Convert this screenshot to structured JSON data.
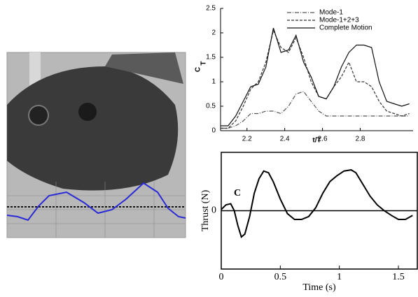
{
  "chart_data": [
    {
      "type": "line",
      "xlabel": "t/T",
      "ylabel": "C",
      "ylabel_subscript": "T",
      "x": [
        2.06,
        2.1,
        2.14,
        2.18,
        2.22,
        2.26,
        2.3,
        2.34,
        2.38,
        2.42,
        2.46,
        2.5,
        2.54,
        2.58,
        2.62,
        2.66,
        2.7,
        2.74,
        2.78,
        2.82,
        2.86,
        2.9,
        2.94,
        2.98,
        3.02,
        3.06
      ],
      "series": [
        {
          "name": "Mode-1",
          "color": "#555555",
          "dash": "dashdot",
          "values": [
            0.05,
            0.05,
            0.1,
            0.2,
            0.35,
            0.35,
            0.4,
            0.4,
            0.35,
            0.5,
            0.75,
            0.8,
            0.6,
            0.4,
            0.3,
            0.3,
            0.3,
            0.3,
            0.3,
            0.3,
            0.3,
            0.3,
            0.3,
            0.3,
            0.3,
            0.3
          ]
        },
        {
          "name": "Mode-1+2+3",
          "color": "#333333",
          "dash": "dashed",
          "values": [
            0.05,
            0.05,
            0.2,
            0.5,
            0.85,
            1.0,
            1.4,
            2.05,
            1.7,
            1.6,
            1.9,
            1.5,
            1.0,
            0.7,
            0.65,
            0.9,
            1.1,
            1.4,
            1.0,
            1.0,
            0.9,
            0.6,
            0.4,
            0.35,
            0.3,
            0.35
          ]
        },
        {
          "name": "Complete Motion",
          "color": "#111111",
          "dash": "solid",
          "values": [
            0.1,
            0.1,
            0.3,
            0.6,
            0.9,
            0.95,
            1.3,
            2.1,
            1.6,
            1.65,
            1.95,
            1.4,
            1.1,
            0.7,
            0.65,
            0.9,
            1.3,
            1.6,
            1.75,
            1.75,
            1.7,
            1.0,
            0.6,
            0.55,
            0.5,
            0.55
          ]
        }
      ],
      "xlim": [
        2.06,
        3.08
      ],
      "xticks": [
        2.2,
        2.4,
        2.6,
        2.8
      ],
      "ylim": [
        0,
        2.5
      ],
      "yticks": [
        0,
        0.5,
        1,
        1.5,
        2,
        2.5
      ],
      "legend": "upper right"
    },
    {
      "type": "line",
      "xlabel": "Time (s)",
      "ylabel": "Thrust (N)",
      "annotation": "C",
      "x": [
        0,
        0.04,
        0.08,
        0.11,
        0.14,
        0.17,
        0.2,
        0.24,
        0.28,
        0.32,
        0.36,
        0.4,
        0.44,
        0.5,
        0.56,
        0.62,
        0.68,
        0.74,
        0.8,
        0.86,
        0.92,
        0.98,
        1.04,
        1.1,
        1.14,
        1.2,
        1.26,
        1.32,
        1.38,
        1.44,
        1.5,
        1.56,
        1.62
      ],
      "series": [
        {
          "color": "#000000",
          "dash": "solid",
          "values": [
            0.02,
            0.1,
            0.12,
            0.0,
            -0.25,
            -0.45,
            -0.4,
            -0.1,
            0.3,
            0.55,
            0.68,
            0.65,
            0.5,
            0.2,
            -0.05,
            -0.15,
            -0.15,
            -0.1,
            0.05,
            0.3,
            0.5,
            0.6,
            0.68,
            0.7,
            0.65,
            0.45,
            0.25,
            0.1,
            0.0,
            -0.08,
            -0.15,
            -0.15,
            -0.08
          ]
        }
      ],
      "xlim": [
        0,
        1.66
      ],
      "xticks": [
        0,
        0.5,
        1,
        1.5
      ],
      "ylim": [
        -1,
        1
      ],
      "yticks": [
        0
      ],
      "zero_line": true
    }
  ]
}
